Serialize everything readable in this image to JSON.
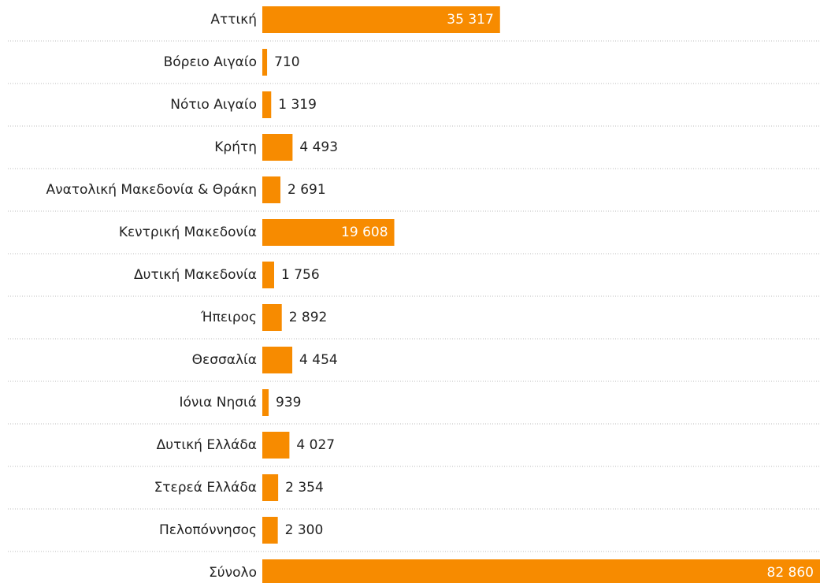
{
  "chart_data": {
    "type": "hbar",
    "categories": [
      "Αττική",
      "Βόρειο Αιγαίο",
      "Νότιο Αιγαίο",
      "Κρήτη",
      "Ανατολική Μακεδονία & Θράκη",
      "Κεντρική Μακεδονία",
      "Δυτική Μακεδονία",
      "Ήπειρος",
      "Θεσσαλία",
      "Ιόνια Νησιά",
      "Δυτική Ελλάδα",
      "Στερεά Ελλάδα",
      "Πελοπόννησος",
      "Σύνολο"
    ],
    "values": [
      35317,
      710,
      1319,
      4493,
      2691,
      19608,
      1756,
      2892,
      4454,
      939,
      4027,
      2354,
      2300,
      82860
    ],
    "value_labels": [
      "35 317",
      "710",
      "1 319",
      "4 493",
      "2 691",
      "19 608",
      "1 756",
      "2 892",
      "4 454",
      "939",
      "4 027",
      "2 354",
      "2 300",
      "82 860"
    ],
    "color": "#f78b00"
  }
}
